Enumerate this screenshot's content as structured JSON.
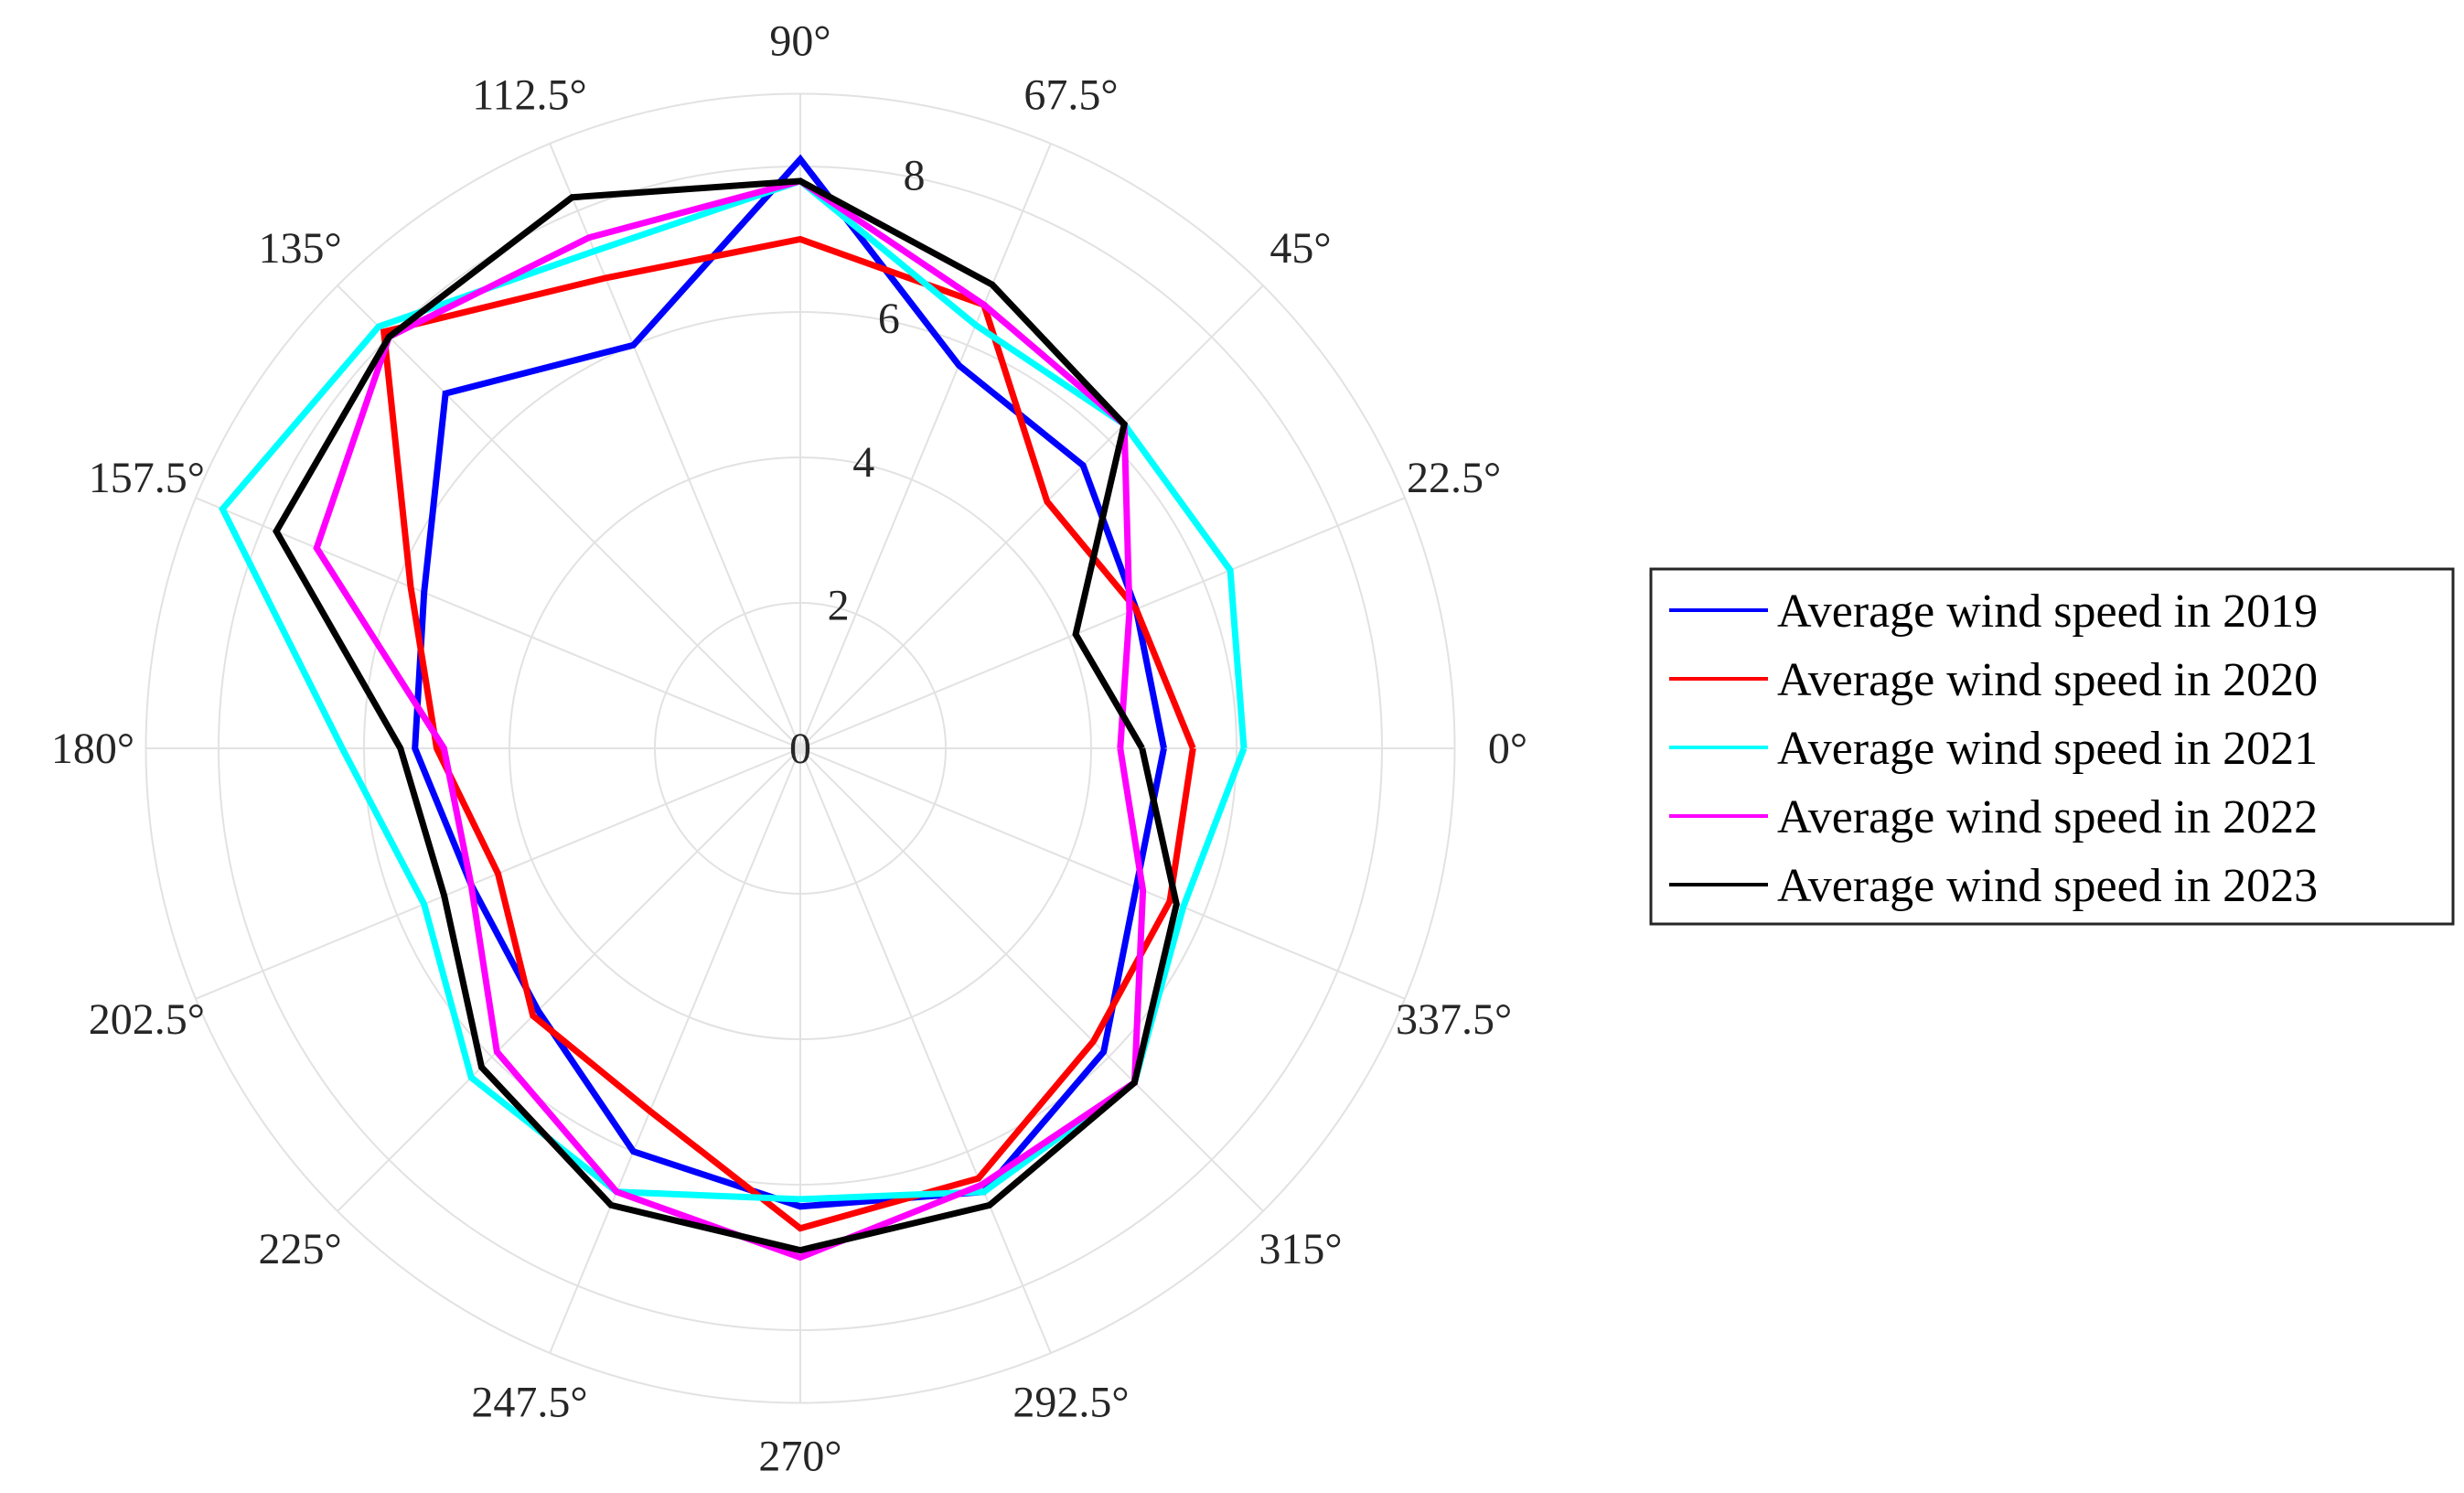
{
  "chart_data": {
    "type": "polar-line",
    "title": "",
    "angle_unit": "degrees",
    "angle_ticks": [
      "0°",
      "22.5°",
      "45°",
      "67.5°",
      "90°",
      "112.5°",
      "135°",
      "157.5°",
      "180°",
      "202.5°",
      "225°",
      "247.5°",
      "270°",
      "292.5°",
      "315°",
      "337.5°"
    ],
    "radial_ticks": [
      "0",
      "2",
      "4",
      "6",
      "8"
    ],
    "rlim": [
      0,
      9
    ],
    "angles": [
      0,
      22.5,
      45,
      67.5,
      90,
      112.5,
      135,
      157.5,
      180,
      202.5,
      225,
      247.5,
      270,
      292.5,
      315,
      337.5
    ],
    "series": [
      {
        "name": "Average wind speed in 2019",
        "color": "#0000ff",
        "values": [
          5.0,
          5.0,
          5.5,
          5.7,
          8.1,
          6.0,
          6.9,
          5.6,
          5.3,
          4.9,
          5.1,
          6.0,
          6.3,
          6.6,
          5.9,
          5.0
        ]
      },
      {
        "name": "Average wind speed in 2020",
        "color": "#ff0000",
        "values": [
          5.4,
          5.0,
          4.8,
          6.6,
          7.0,
          7.0,
          8.1,
          5.8,
          5.0,
          4.5,
          5.2,
          5.4,
          6.6,
          6.4,
          5.7,
          5.5
        ]
      },
      {
        "name": "Average wind speed in 2021",
        "color": "#00ffff",
        "values": [
          6.1,
          6.4,
          6.3,
          6.3,
          7.8,
          7.4,
          8.2,
          8.6,
          6.3,
          5.6,
          6.4,
          6.6,
          6.2,
          6.6,
          6.5,
          5.7
        ]
      },
      {
        "name": "Average wind speed in 2022",
        "color": "#ff00ff",
        "values": [
          4.4,
          4.9,
          6.3,
          6.6,
          7.8,
          7.6,
          8.0,
          7.2,
          4.9,
          4.9,
          5.9,
          6.6,
          7.0,
          6.5,
          6.5,
          5.1
        ]
      },
      {
        "name": "Average wind speed in 2023",
        "color": "#000000",
        "values": [
          4.7,
          4.1,
          6.3,
          6.9,
          7.8,
          8.2,
          8.0,
          7.8,
          5.5,
          5.3,
          6.2,
          6.8,
          6.9,
          6.8,
          6.5,
          5.6
        ]
      }
    ],
    "legend_position": "right"
  }
}
